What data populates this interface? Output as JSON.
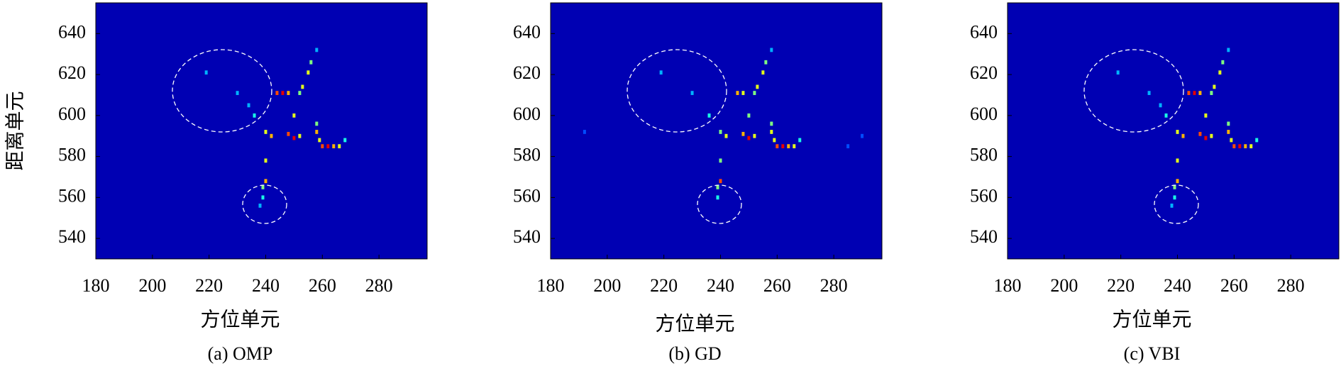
{
  "chart_data": [
    {
      "type": "heatmap",
      "caption": "(a) OMP",
      "xlabel": "方位单元",
      "ylabel": "距离单元",
      "colormap": "jet",
      "xlim": [
        180,
        297
      ],
      "ylim": [
        530,
        655
      ],
      "xticks": [
        180,
        200,
        220,
        240,
        260,
        280
      ],
      "yticks": [
        540,
        560,
        580,
        600,
        620,
        640
      ],
      "x": [
        258,
        256,
        255,
        244,
        246,
        248,
        252,
        253,
        250,
        236,
        240,
        242,
        248,
        250,
        252,
        258,
        259,
        260,
        262,
        264,
        266,
        258,
        240,
        240,
        239,
        239,
        238,
        219,
        230,
        234,
        268
      ],
      "y": [
        632,
        626,
        621,
        611,
        611,
        611,
        611,
        614,
        600,
        600,
        592,
        590,
        591,
        589,
        590,
        592,
        588,
        585,
        585,
        585,
        585,
        596,
        578,
        568,
        565,
        560,
        556,
        621,
        611,
        605,
        588
      ],
      "values": [
        0.3,
        0.5,
        0.6,
        0.8,
        0.9,
        0.7,
        0.5,
        0.6,
        0.6,
        0.4,
        0.6,
        0.7,
        0.8,
        0.9,
        0.6,
        0.7,
        0.6,
        0.8,
        0.9,
        0.7,
        0.6,
        0.5,
        0.6,
        0.7,
        0.5,
        0.4,
        0.3,
        0.3,
        0.3,
        0.3,
        0.4
      ]
    },
    {
      "type": "heatmap",
      "caption": "(b) GD",
      "xlabel": "方位单元",
      "colormap": "jet",
      "xlim": [
        180,
        297
      ],
      "ylim": [
        530,
        655
      ],
      "xticks": [
        180,
        200,
        220,
        240,
        260,
        280
      ],
      "yticks": [
        540,
        560,
        580,
        600,
        620,
        640
      ],
      "x": [
        258,
        256,
        255,
        246,
        248,
        252,
        253,
        250,
        236,
        240,
        242,
        248,
        250,
        252,
        258,
        259,
        260,
        262,
        264,
        266,
        258,
        240,
        240,
        239,
        239,
        219,
        230,
        192,
        285,
        290,
        268
      ],
      "y": [
        632,
        626,
        621,
        611,
        611,
        611,
        614,
        600,
        600,
        592,
        590,
        591,
        589,
        590,
        592,
        588,
        585,
        585,
        585,
        585,
        596,
        578,
        568,
        565,
        560,
        621,
        611,
        592,
        585,
        590,
        588
      ],
      "values": [
        0.3,
        0.5,
        0.6,
        0.7,
        0.6,
        0.5,
        0.6,
        0.5,
        0.4,
        0.5,
        0.6,
        0.7,
        0.9,
        0.6,
        0.6,
        0.6,
        0.8,
        0.9,
        0.7,
        0.6,
        0.5,
        0.5,
        0.8,
        0.5,
        0.4,
        0.3,
        0.3,
        0.2,
        0.2,
        0.2,
        0.4
      ]
    },
    {
      "type": "heatmap",
      "caption": "(c) VBI",
      "xlabel": "方位单元",
      "colormap": "jet",
      "xlim": [
        180,
        297
      ],
      "ylim": [
        530,
        655
      ],
      "xticks": [
        180,
        200,
        220,
        240,
        260,
        280
      ],
      "yticks": [
        540,
        560,
        580,
        600,
        620,
        640
      ],
      "x": [
        258,
        256,
        255,
        244,
        246,
        248,
        252,
        253,
        250,
        236,
        240,
        242,
        248,
        250,
        252,
        258,
        259,
        260,
        262,
        264,
        266,
        258,
        240,
        240,
        239,
        239,
        238,
        219,
        230,
        234,
        268
      ],
      "y": [
        632,
        626,
        621,
        611,
        611,
        611,
        611,
        614,
        600,
        600,
        592,
        590,
        591,
        589,
        590,
        592,
        588,
        585,
        585,
        585,
        585,
        596,
        578,
        568,
        565,
        560,
        556,
        621,
        611,
        605,
        588
      ],
      "values": [
        0.3,
        0.5,
        0.6,
        0.8,
        0.9,
        0.7,
        0.5,
        0.6,
        0.6,
        0.4,
        0.6,
        0.7,
        0.8,
        0.9,
        0.6,
        0.7,
        0.6,
        0.8,
        0.9,
        0.7,
        0.6,
        0.5,
        0.6,
        0.7,
        0.5,
        0.4,
        0.3,
        0.3,
        0.3,
        0.3,
        0.4
      ]
    }
  ]
}
